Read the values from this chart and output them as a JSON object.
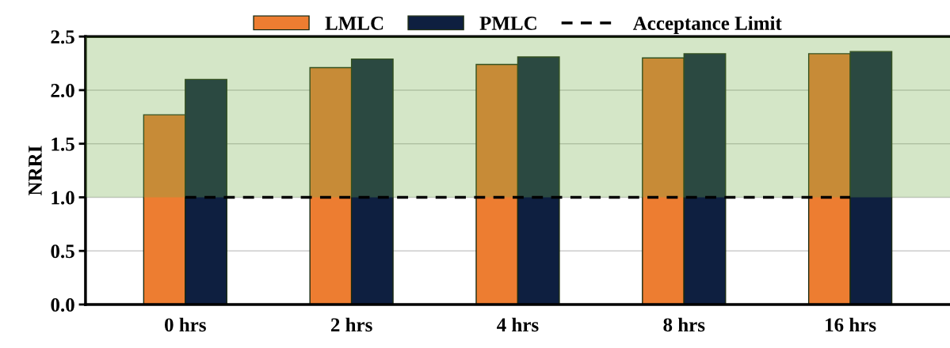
{
  "chart_data": {
    "type": "bar",
    "ylabel": "NRRI",
    "categories": [
      "0 hrs",
      "2 hrs",
      "4 hrs",
      "8 hrs",
      "16 hrs"
    ],
    "series": [
      {
        "name": "LMLC",
        "color": "#ed7d31",
        "values": [
          1.77,
          2.21,
          2.24,
          2.3,
          2.34
        ]
      },
      {
        "name": "PMLC",
        "color": "#0e1f40",
        "values": [
          2.1,
          2.29,
          2.31,
          2.34,
          2.36
        ]
      }
    ],
    "ref_lines": [
      {
        "axis": "y",
        "value": 1.0,
        "label": "Acceptance Limit",
        "color": "#000000",
        "line_style": "dashed"
      }
    ],
    "bands": [
      {
        "axis": "y",
        "from": 1.0,
        "to": 2.5,
        "color": "#70ad47"
      }
    ],
    "ylim": [
      0,
      2.5
    ],
    "yticks": [
      {
        "value": 0,
        "label": "0.0"
      },
      0.5,
      {
        "value": 1,
        "label": "1.0"
      },
      1.5,
      {
        "value": 2,
        "label": "2.0"
      },
      2.5
    ],
    "grid": "y",
    "legend": "top"
  }
}
